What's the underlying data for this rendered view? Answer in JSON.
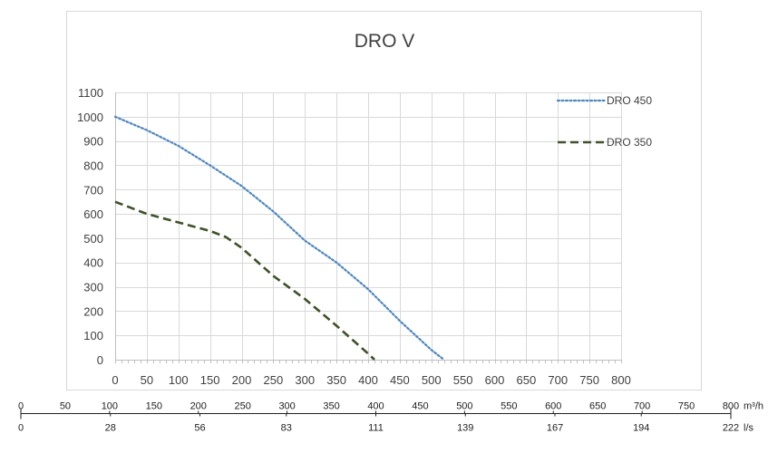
{
  "chart_data": {
    "type": "line",
    "title": "DRO V",
    "xlabel": "",
    "ylabel": "",
    "xlim": [
      0,
      800
    ],
    "ylim": [
      0,
      1100
    ],
    "x_ticks": [
      0,
      50,
      100,
      150,
      200,
      250,
      300,
      350,
      400,
      450,
      500,
      550,
      600,
      650,
      700,
      750,
      800
    ],
    "y_ticks": [
      0,
      100,
      200,
      300,
      400,
      500,
      600,
      700,
      800,
      900,
      1000,
      1100
    ],
    "grid": true,
    "legend_position": "right",
    "series": [
      {
        "name": "DRO 450",
        "style": "dotted",
        "color": "#4a86c8",
        "x": [
          0,
          50,
          100,
          150,
          200,
          250,
          300,
          350,
          400,
          450,
          500,
          520
        ],
        "y": [
          1000,
          945,
          880,
          800,
          715,
          610,
          490,
          400,
          290,
          160,
          40,
          0
        ]
      },
      {
        "name": "DRO 350",
        "style": "dashed",
        "color": "#3d5226",
        "x": [
          0,
          50,
          100,
          150,
          175,
          200,
          250,
          300,
          350,
          400,
          410
        ],
        "y": [
          650,
          600,
          565,
          530,
          505,
          460,
          345,
          250,
          140,
          25,
          0
        ]
      }
    ]
  },
  "conversion_scales": {
    "m3h": {
      "unit": "m³/h",
      "ticks": [
        "0",
        "50",
        "100",
        "150",
        "200",
        "250",
        "300",
        "350",
        "400",
        "450",
        "500",
        "550",
        "600",
        "650",
        "700",
        "750",
        "800"
      ]
    },
    "ls": {
      "unit": "l/s",
      "ticks": [
        "0",
        "28",
        "56",
        "83",
        "111",
        "139",
        "167",
        "194",
        "222"
      ]
    }
  },
  "colors": {
    "grid": "#d9d9d9",
    "axis": "#bfbfbf",
    "frame": "#d9d9d9",
    "text": "#404040"
  }
}
